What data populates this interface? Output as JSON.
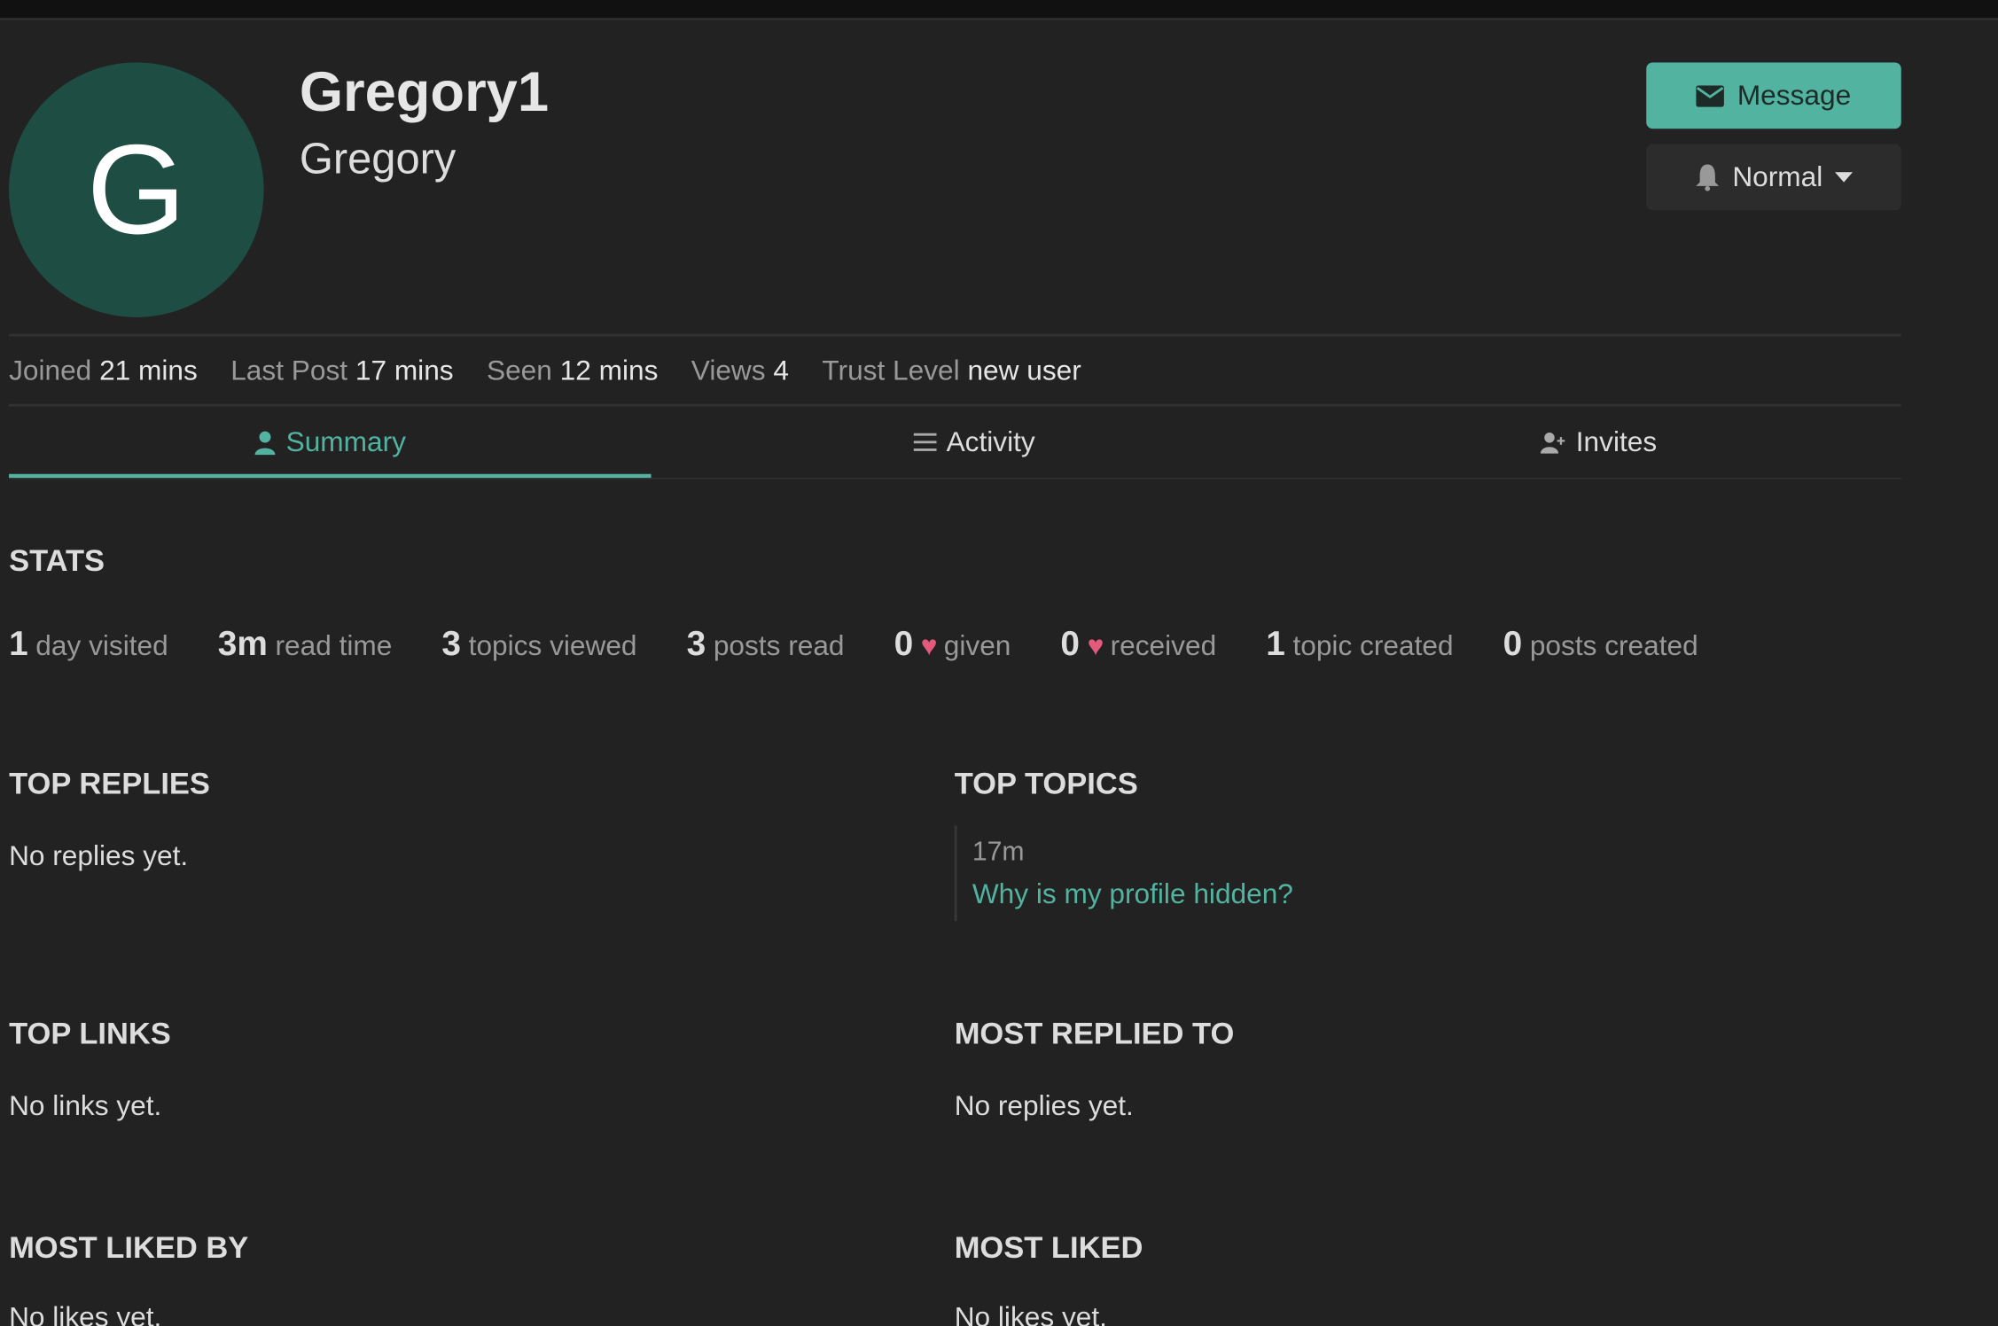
{
  "profile": {
    "avatar_letter": "G",
    "avatar_color": "#1e4d44",
    "username": "Gregory1",
    "name": "Gregory"
  },
  "actions": {
    "message_label": "Message",
    "message_icon": "envelope-icon",
    "notification_label": "Normal",
    "notification_icon": "bell-icon"
  },
  "meta": [
    {
      "label": "Joined",
      "value": "21 mins"
    },
    {
      "label": "Last Post",
      "value": "17 mins"
    },
    {
      "label": "Seen",
      "value": "12 mins"
    },
    {
      "label": "Views",
      "value": "4"
    },
    {
      "label": "Trust Level",
      "value": "new user"
    }
  ],
  "tabs": [
    {
      "label": "Summary",
      "icon": "user-icon",
      "active": true
    },
    {
      "label": "Activity",
      "icon": "list-icon"
    },
    {
      "label": "Invites",
      "icon": "user-plus-icon"
    }
  ],
  "stats": {
    "title": "STATS",
    "items": [
      {
        "value": "1",
        "label": "day visited"
      },
      {
        "value": "3m",
        "label": "read time"
      },
      {
        "value": "3",
        "label": "topics viewed"
      },
      {
        "value": "3",
        "label": "posts read"
      },
      {
        "value": "0",
        "label": "given",
        "heart": true
      },
      {
        "value": "0",
        "label": "received",
        "heart": true
      },
      {
        "value": "1",
        "label": "topic created"
      },
      {
        "value": "0",
        "label": "posts created"
      }
    ]
  },
  "sections": {
    "top_replies": {
      "title": "TOP REPLIES",
      "empty": "No replies yet."
    },
    "top_topics": {
      "title": "TOP TOPICS",
      "items": [
        {
          "age": "17m",
          "title": "Why is my profile hidden?"
        }
      ]
    },
    "top_links": {
      "title": "TOP LINKS",
      "empty": "No links yet."
    },
    "most_replied_to": {
      "title": "MOST REPLIED TO",
      "empty": "No replies yet."
    },
    "most_liked_by": {
      "title": "MOST LIKED BY",
      "empty": "No likes yet."
    },
    "most_liked": {
      "title": "MOST LIKED",
      "empty": "No likes yet."
    }
  },
  "colors": {
    "accent": "#52b3a0",
    "background": "#222222",
    "heart": "#e45a7a"
  }
}
